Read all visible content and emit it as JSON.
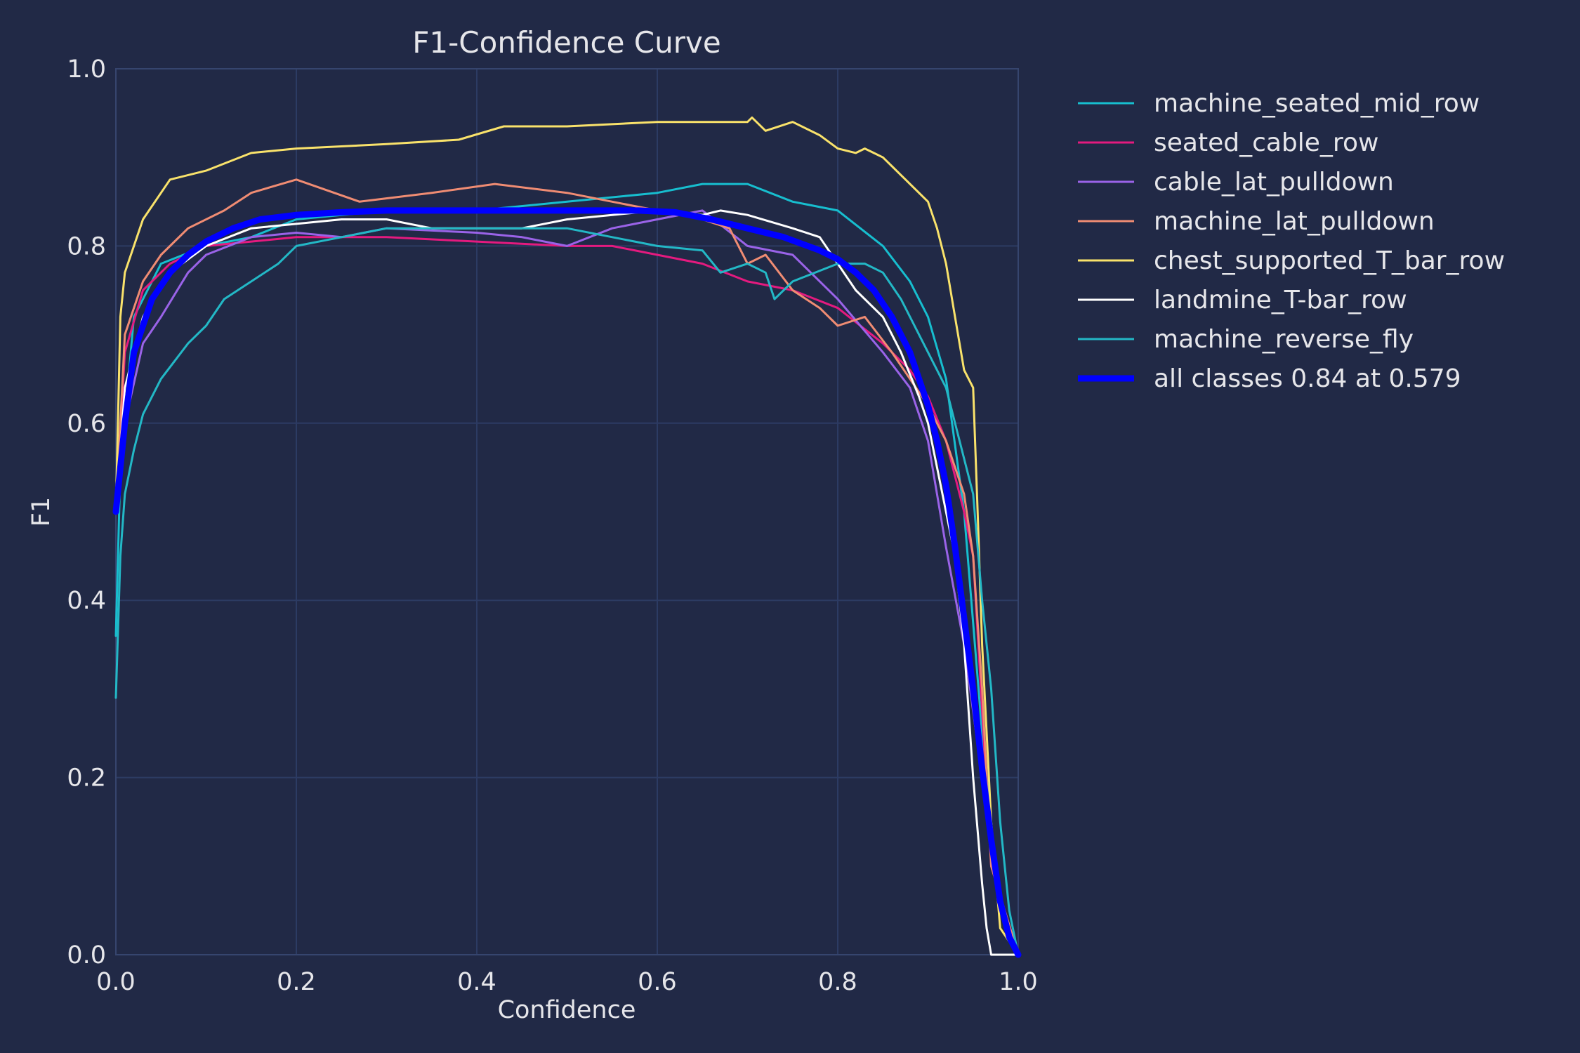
{
  "chart_data": {
    "type": "line",
    "title": "F1-Confidence Curve",
    "xlabel": "Confidence",
    "ylabel": "F1",
    "xlim": [
      0,
      1
    ],
    "ylim": [
      0,
      1
    ],
    "xticks": [
      "0.0",
      "0.2",
      "0.4",
      "0.6",
      "0.8",
      "1.0"
    ],
    "yticks": [
      "0.0",
      "0.2",
      "0.4",
      "0.6",
      "0.8",
      "1.0"
    ],
    "grid": true,
    "legend_position": "right-outside",
    "series": [
      {
        "name": "machine_seated_mid_row",
        "color": "#17becf",
        "x": [
          0.0,
          0.005,
          0.02,
          0.05,
          0.1,
          0.15,
          0.2,
          0.3,
          0.4,
          0.5,
          0.6,
          0.65,
          0.7,
          0.75,
          0.8,
          0.85,
          0.88,
          0.9,
          0.92,
          0.94,
          0.96,
          0.98,
          1.0
        ],
        "y": [
          0.36,
          0.55,
          0.72,
          0.78,
          0.8,
          0.81,
          0.83,
          0.84,
          0.84,
          0.85,
          0.86,
          0.87,
          0.87,
          0.85,
          0.84,
          0.8,
          0.76,
          0.72,
          0.65,
          0.5,
          0.25,
          0.05,
          0.0
        ]
      },
      {
        "name": "seated_cable_row",
        "color": "#e41a7f",
        "x": [
          0.0,
          0.01,
          0.03,
          0.06,
          0.1,
          0.15,
          0.2,
          0.3,
          0.4,
          0.5,
          0.55,
          0.6,
          0.65,
          0.7,
          0.75,
          0.8,
          0.85,
          0.88,
          0.9,
          0.92,
          0.94,
          0.95,
          0.97,
          1.0
        ],
        "y": [
          0.5,
          0.68,
          0.75,
          0.78,
          0.8,
          0.805,
          0.81,
          0.81,
          0.805,
          0.8,
          0.8,
          0.79,
          0.78,
          0.76,
          0.75,
          0.73,
          0.69,
          0.66,
          0.63,
          0.58,
          0.5,
          0.45,
          0.1,
          0.0
        ]
      },
      {
        "name": "cable_lat_pulldown",
        "color": "#9a63e8",
        "x": [
          0.0,
          0.01,
          0.03,
          0.05,
          0.08,
          0.1,
          0.15,
          0.2,
          0.25,
          0.3,
          0.4,
          0.45,
          0.5,
          0.55,
          0.6,
          0.65,
          0.7,
          0.75,
          0.8,
          0.85,
          0.88,
          0.9,
          0.92,
          0.94,
          0.96,
          0.98,
          1.0
        ],
        "y": [
          0.5,
          0.6,
          0.69,
          0.72,
          0.77,
          0.79,
          0.81,
          0.815,
          0.81,
          0.82,
          0.815,
          0.81,
          0.8,
          0.82,
          0.83,
          0.84,
          0.8,
          0.79,
          0.74,
          0.68,
          0.64,
          0.58,
          0.46,
          0.35,
          0.2,
          0.05,
          0.0
        ]
      },
      {
        "name": "machine_lat_pulldown",
        "color": "#f08c73",
        "x": [
          0.0,
          0.01,
          0.03,
          0.05,
          0.08,
          0.12,
          0.15,
          0.2,
          0.27,
          0.35,
          0.42,
          0.5,
          0.55,
          0.6,
          0.65,
          0.68,
          0.7,
          0.72,
          0.75,
          0.78,
          0.8,
          0.83,
          0.86,
          0.88,
          0.9,
          0.92,
          0.94,
          0.95,
          0.96,
          0.97,
          1.0
        ],
        "y": [
          0.5,
          0.7,
          0.76,
          0.79,
          0.82,
          0.84,
          0.86,
          0.875,
          0.85,
          0.86,
          0.87,
          0.86,
          0.85,
          0.84,
          0.83,
          0.82,
          0.78,
          0.79,
          0.75,
          0.73,
          0.71,
          0.72,
          0.68,
          0.65,
          0.62,
          0.58,
          0.52,
          0.45,
          0.3,
          0.1,
          0.0
        ]
      },
      {
        "name": "chest_supported_T_bar_row",
        "color": "#f9e26b",
        "x": [
          0.0,
          0.005,
          0.01,
          0.02,
          0.03,
          0.05,
          0.06,
          0.1,
          0.15,
          0.2,
          0.3,
          0.38,
          0.43,
          0.5,
          0.6,
          0.7,
          0.705,
          0.72,
          0.75,
          0.78,
          0.8,
          0.82,
          0.83,
          0.84,
          0.85,
          0.87,
          0.9,
          0.91,
          0.92,
          0.93,
          0.94,
          0.95,
          0.955,
          0.96,
          0.97,
          0.98,
          1.0
        ],
        "y": [
          0.5,
          0.72,
          0.77,
          0.8,
          0.83,
          0.86,
          0.875,
          0.885,
          0.905,
          0.91,
          0.915,
          0.92,
          0.935,
          0.935,
          0.94,
          0.94,
          0.945,
          0.93,
          0.94,
          0.925,
          0.91,
          0.905,
          0.91,
          0.905,
          0.9,
          0.88,
          0.85,
          0.82,
          0.78,
          0.72,
          0.66,
          0.64,
          0.5,
          0.35,
          0.15,
          0.03,
          0.0
        ]
      },
      {
        "name": "landmine_T-bar_row",
        "color": "#ffffff",
        "x": [
          0.0,
          0.01,
          0.03,
          0.06,
          0.1,
          0.15,
          0.2,
          0.25,
          0.3,
          0.35,
          0.4,
          0.45,
          0.5,
          0.55,
          0.6,
          0.65,
          0.67,
          0.7,
          0.75,
          0.78,
          0.8,
          0.82,
          0.85,
          0.87,
          0.89,
          0.9,
          0.91,
          0.92,
          0.93,
          0.94,
          0.95,
          0.96,
          0.965,
          0.97,
          1.0
        ],
        "y": [
          0.5,
          0.64,
          0.72,
          0.77,
          0.8,
          0.82,
          0.825,
          0.83,
          0.83,
          0.82,
          0.82,
          0.82,
          0.83,
          0.835,
          0.84,
          0.835,
          0.84,
          0.835,
          0.82,
          0.81,
          0.78,
          0.75,
          0.72,
          0.68,
          0.63,
          0.6,
          0.55,
          0.5,
          0.45,
          0.35,
          0.2,
          0.08,
          0.03,
          0.0,
          0.0
        ]
      },
      {
        "name": "machine_reverse_fly",
        "color": "#23b8c6",
        "x": [
          0.0,
          0.005,
          0.01,
          0.02,
          0.03,
          0.05,
          0.08,
          0.1,
          0.12,
          0.15,
          0.18,
          0.2,
          0.25,
          0.3,
          0.35,
          0.4,
          0.45,
          0.5,
          0.55,
          0.6,
          0.65,
          0.67,
          0.7,
          0.72,
          0.73,
          0.75,
          0.8,
          0.83,
          0.85,
          0.87,
          0.9,
          0.92,
          0.94,
          0.95,
          0.96,
          0.97,
          0.98,
          0.99,
          1.0
        ],
        "y": [
          0.29,
          0.45,
          0.52,
          0.57,
          0.61,
          0.65,
          0.69,
          0.71,
          0.74,
          0.76,
          0.78,
          0.8,
          0.81,
          0.82,
          0.82,
          0.82,
          0.82,
          0.82,
          0.81,
          0.8,
          0.795,
          0.77,
          0.78,
          0.77,
          0.74,
          0.76,
          0.78,
          0.78,
          0.77,
          0.74,
          0.68,
          0.64,
          0.56,
          0.52,
          0.4,
          0.3,
          0.15,
          0.05,
          0.0
        ]
      },
      {
        "name": "all classes 0.84 at 0.579",
        "color": "#0000ff",
        "bold": true,
        "x": [
          0.0,
          0.01,
          0.02,
          0.04,
          0.06,
          0.08,
          0.1,
          0.13,
          0.16,
          0.2,
          0.25,
          0.3,
          0.4,
          0.5,
          0.579,
          0.62,
          0.66,
          0.7,
          0.74,
          0.78,
          0.8,
          0.82,
          0.84,
          0.86,
          0.88,
          0.9,
          0.91,
          0.92,
          0.93,
          0.94,
          0.95,
          0.96,
          0.97,
          0.98,
          0.99,
          1.0
        ],
        "y": [
          0.5,
          0.6,
          0.68,
          0.74,
          0.77,
          0.79,
          0.805,
          0.82,
          0.83,
          0.835,
          0.838,
          0.84,
          0.84,
          0.84,
          0.84,
          0.838,
          0.83,
          0.82,
          0.81,
          0.795,
          0.785,
          0.77,
          0.75,
          0.72,
          0.68,
          0.62,
          0.58,
          0.53,
          0.46,
          0.38,
          0.3,
          0.21,
          0.13,
          0.06,
          0.02,
          0.0
        ]
      }
    ]
  }
}
